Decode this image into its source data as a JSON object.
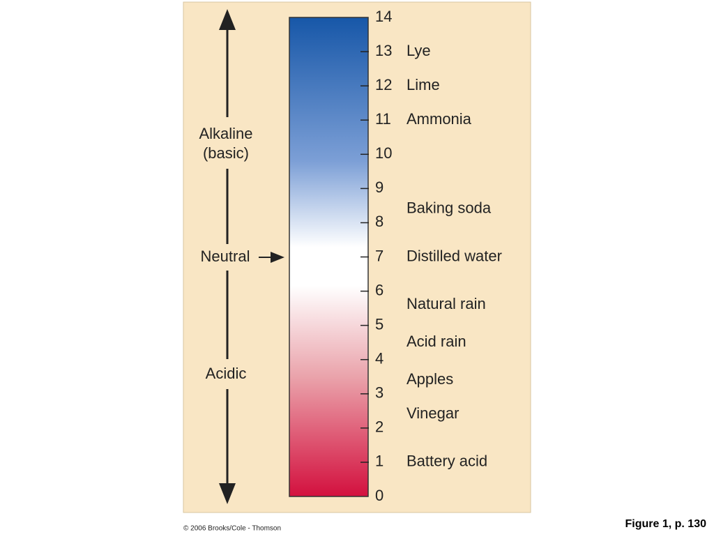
{
  "scale": {
    "ticks": [
      0,
      1,
      2,
      3,
      4,
      5,
      6,
      7,
      8,
      9,
      10,
      11,
      12,
      13,
      14
    ]
  },
  "substances": [
    {
      "label": "Lye",
      "ph": 13
    },
    {
      "label": "Lime",
      "ph": 12
    },
    {
      "label": "Ammonia",
      "ph": 11
    },
    {
      "label": "Baking soda",
      "ph": 8.4
    },
    {
      "label": "Distilled water",
      "ph": 7
    },
    {
      "label": "Natural rain",
      "ph": 5.6
    },
    {
      "label": "Acid rain",
      "ph": 4.5
    },
    {
      "label": "Apples",
      "ph": 3.4
    },
    {
      "label": "Vinegar",
      "ph": 2.4
    },
    {
      "label": "Battery acid",
      "ph": 1
    }
  ],
  "side_labels": {
    "alkaline": "Alkaline",
    "basic": "(basic)",
    "neutral": "Neutral",
    "acidic": "Acidic"
  },
  "footer": {
    "copyright": "© 2006 Brooks/Cole - Thomson",
    "figure": "Figure 1, p. 130"
  }
}
